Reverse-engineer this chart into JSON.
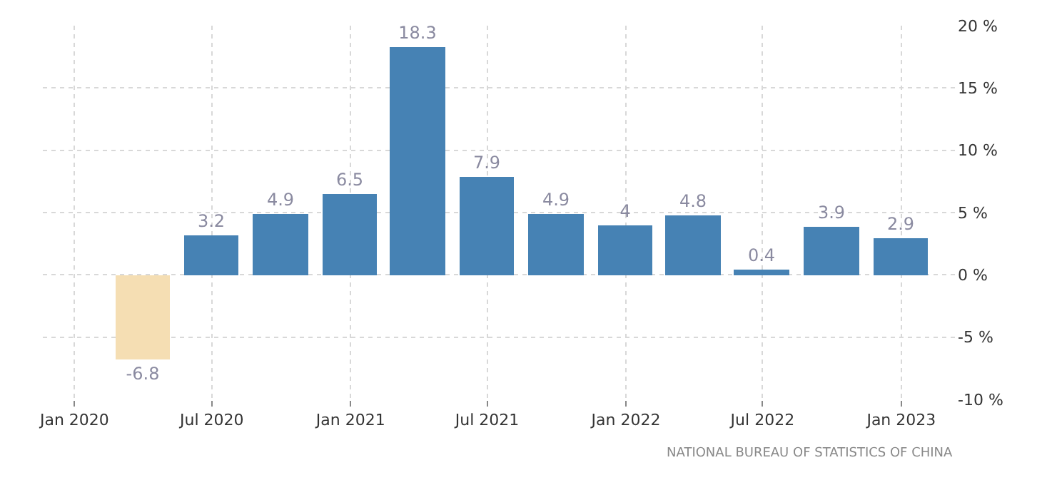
{
  "chart_data": {
    "type": "bar",
    "x": [
      "2020-03-31",
      "2020-06-30",
      "2020-09-30",
      "2020-12-31",
      "2021-03-31",
      "2021-06-30",
      "2021-09-30",
      "2021-12-31",
      "2022-03-31",
      "2022-06-30",
      "2022-09-30",
      "2022-12-31"
    ],
    "values": [
      -6.8,
      3.2,
      4.9,
      6.5,
      18.3,
      7.9,
      4.9,
      4,
      4.8,
      0.4,
      3.9,
      2.9
    ],
    "colors": [
      "#f5deb3",
      "#4682b4",
      "#4682b4",
      "#4682b4",
      "#4682b4",
      "#4682b4",
      "#4682b4",
      "#4682b4",
      "#4682b4",
      "#4682b4",
      "#4682b4",
      "#4682b4"
    ],
    "data_labels": true,
    "xlim": [
      "2019-11-20",
      "2023-03-15"
    ],
    "xticks": [
      {
        "value": "2020-01-01",
        "label": "Jan 2020"
      },
      {
        "value": "2020-07-01",
        "label": "Jul 2020"
      },
      {
        "value": "2021-01-01",
        "label": "Jan 2021"
      },
      {
        "value": "2021-07-01",
        "label": "Jul 2021"
      },
      {
        "value": "2022-01-01",
        "label": "Jan 2022"
      },
      {
        "value": "2022-07-01",
        "label": "Jul 2022"
      },
      {
        "value": "2023-01-01",
        "label": "Jan 2023"
      }
    ],
    "ylim": [
      -10,
      20
    ],
    "yticks": [
      {
        "value": 20,
        "label": "20 %"
      },
      {
        "value": 15,
        "label": "15 %"
      },
      {
        "value": 10,
        "label": "10 %"
      },
      {
        "value": 5,
        "label": "5 %"
      },
      {
        "value": 0,
        "label": "0 %"
      },
      {
        "value": -5,
        "label": "-5 %"
      },
      {
        "value": -10,
        "label": "-10 %"
      }
    ],
    "grid": true,
    "annotations": [
      "NATIONAL BUREAU OF STATISTICS OF CHINA"
    ]
  }
}
